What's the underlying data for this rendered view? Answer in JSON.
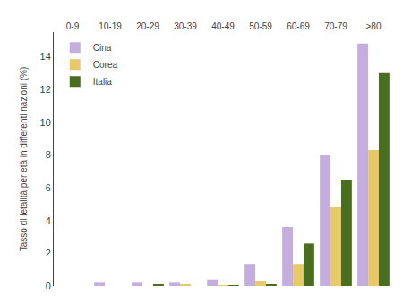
{
  "chart_data": {
    "type": "bar",
    "categories": [
      "0-9",
      "10-19",
      "20-29",
      "30-39",
      "40-49",
      "50-59",
      "60-69",
      "70-79",
      ">80"
    ],
    "series": [
      {
        "name": "Cina",
        "color": "#c4aee0",
        "values": [
          0.0,
          0.2,
          0.2,
          0.2,
          0.4,
          1.3,
          3.6,
          8.0,
          14.8
        ]
      },
      {
        "name": "Corea",
        "color": "#e8c96a",
        "values": [
          0.0,
          0.0,
          0.0,
          0.1,
          0.05,
          0.3,
          1.3,
          4.8,
          8.3
        ]
      },
      {
        "name": "Italia",
        "color": "#4a6e20",
        "values": [
          0.0,
          0.0,
          0.1,
          0.0,
          0.05,
          0.1,
          2.6,
          6.5,
          13.0
        ]
      }
    ],
    "ylabel": "Tasso di letalità per età in differenti nazioni (%)",
    "ylim": [
      0,
      15.5
    ],
    "yticks": [
      0,
      2,
      4,
      6,
      8,
      10,
      12,
      14
    ],
    "grid": false,
    "legend": "upper left"
  }
}
